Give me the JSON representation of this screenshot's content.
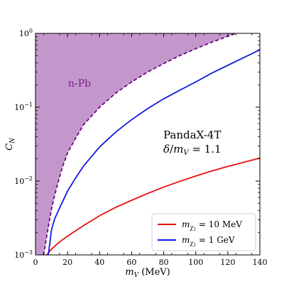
{
  "chart_data": {
    "type": "line",
    "xlabel": "m_V (MeV)",
    "ylabel": "C_N",
    "xlim": [
      0,
      140
    ],
    "ylim": [
      0.001,
      1
    ],
    "yscale": "log",
    "x_ticks": [
      0,
      20,
      40,
      60,
      80,
      100,
      120,
      140
    ],
    "x_tick_labels": [
      "0",
      "20",
      "40",
      "60",
      "80",
      "100",
      "120",
      "140"
    ],
    "y_ticks": [
      0.001,
      0.01,
      0.1,
      1
    ],
    "y_tick_labels": [
      {
        "base": "10",
        "exp": "−3"
      },
      {
        "base": "10",
        "exp": "−2"
      },
      {
        "base": "10",
        "exp": "−1"
      },
      {
        "base": "10",
        "exp": "0"
      }
    ],
    "grid": false,
    "annotations": {
      "region_label": "n-Pb",
      "experiment": "PandaX-4T",
      "ratio": "δ/m_V = 1.1"
    },
    "colors": {
      "excluded_fill": "#c497cc",
      "excluded_line": "#6a0b82",
      "m10mev": "#e81010",
      "m1gev": "#1418e0"
    },
    "excluded_boundary": {
      "name": "n-Pb",
      "x": [
        5,
        6,
        7,
        8,
        9,
        10,
        12,
        14,
        17,
        20,
        25,
        30,
        40,
        50,
        60,
        70,
        80,
        90,
        100,
        110,
        118,
        125
      ],
      "y": [
        0.001,
        0.0013,
        0.0018,
        0.0024,
        0.0032,
        0.0042,
        0.0065,
        0.0095,
        0.016,
        0.024,
        0.038,
        0.058,
        0.1,
        0.155,
        0.22,
        0.3,
        0.39,
        0.5,
        0.62,
        0.76,
        0.88,
        1.0
      ]
    },
    "series": [
      {
        "name": "m_χ1 = 10 MeV",
        "x": [
          7,
          10,
          15,
          20,
          30,
          40,
          50,
          60,
          70,
          80,
          90,
          100,
          110,
          120,
          130,
          140
        ],
        "y": [
          0.001,
          0.0012,
          0.0015,
          0.0018,
          0.0025,
          0.0034,
          0.0044,
          0.0055,
          0.0068,
          0.0083,
          0.0099,
          0.0117,
          0.0137,
          0.0158,
          0.018,
          0.0205
        ]
      },
      {
        "name": "m_χ1 = 1 GeV",
        "x": [
          8,
          10,
          12,
          15,
          20,
          25,
          30,
          40,
          50,
          60,
          70,
          80,
          90,
          100,
          110,
          120,
          130,
          140
        ],
        "y": [
          0.001,
          0.0022,
          0.0031,
          0.0043,
          0.0073,
          0.011,
          0.016,
          0.029,
          0.046,
          0.068,
          0.096,
          0.13,
          0.17,
          0.22,
          0.29,
          0.37,
          0.47,
          0.6
        ]
      }
    ],
    "legend": {
      "placement": "bottom-right",
      "entries": [
        {
          "prefix": "m",
          "sub": "χ",
          "subsub": "1",
          "rest": " = 10 MeV",
          "color": "#e81010"
        },
        {
          "prefix": "m",
          "sub": "χ",
          "subsub": "1",
          "rest": " = 1 GeV",
          "color": "#1418e0"
        }
      ]
    }
  }
}
